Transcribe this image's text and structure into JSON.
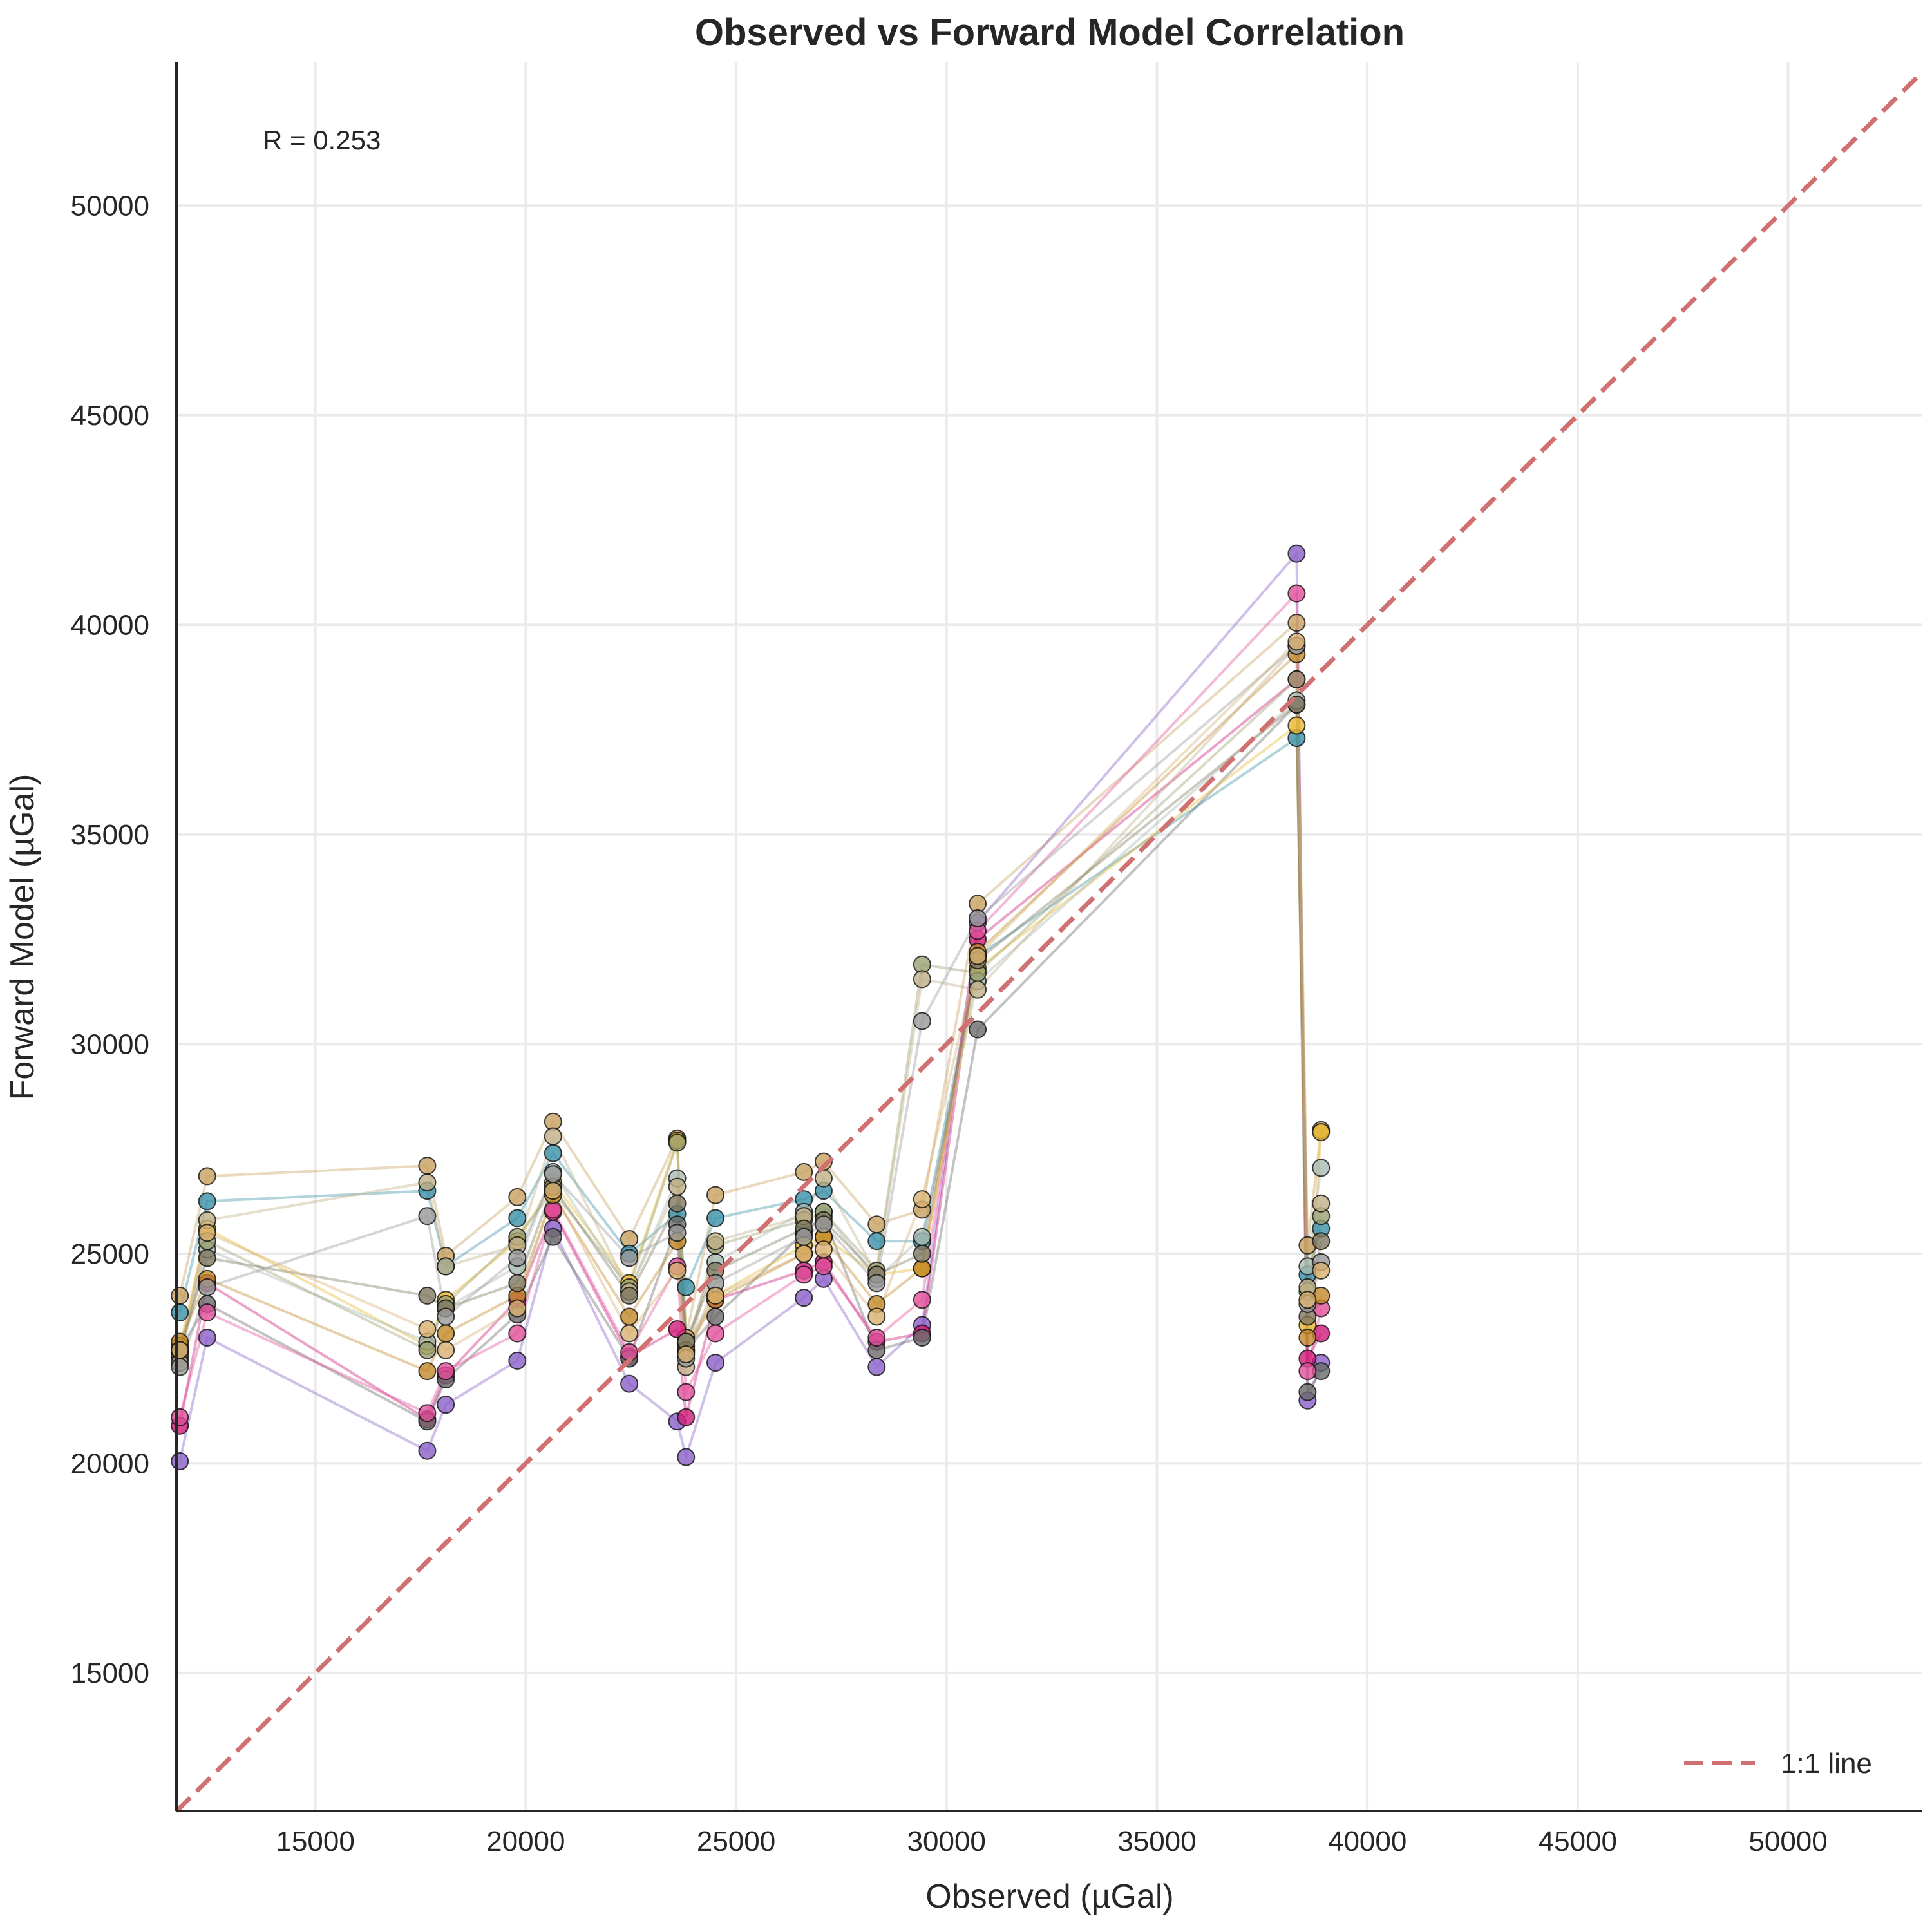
{
  "chart_data": {
    "type": "scatter",
    "title": "Observed vs Forward Model Correlation",
    "xlabel": "Observed (µGal)",
    "ylabel": "Forward Model (µGal)",
    "xlim": [
      11700,
      53190
    ],
    "ylim": [
      11710,
      53430
    ],
    "xticks": [
      15000,
      20000,
      25000,
      30000,
      35000,
      40000,
      45000,
      50000
    ],
    "yticks": [
      15000,
      20000,
      25000,
      30000,
      35000,
      40000,
      45000,
      50000
    ],
    "grid": true,
    "annotation": "R = 0.253",
    "reference_line": {
      "label": "1:1 line",
      "color": "#d07070",
      "style": "dashed"
    },
    "legend_position": "bottom-right",
    "x": [
      11780,
      12430,
      17660,
      18100,
      19800,
      20650,
      22460,
      23600,
      23810,
      24510,
      26610,
      27080,
      28340,
      29420,
      30740,
      38320,
      38580,
      38900
    ],
    "series": [
      {
        "color": "#c8a060",
        "values": [
          24000,
          26850,
          27100,
          24950,
          26350,
          28150,
          25350,
          27750,
          23000,
          26400,
          26950,
          27200,
          25700,
          26050,
          33350,
          40050,
          25200,
          27950
        ]
      },
      {
        "color": "#3a90a8",
        "values": [
          23600,
          26250,
          26500,
          24700,
          25850,
          27400,
          25000,
          25950,
          24200,
          25850,
          26300,
          26500,
          25300,
          25300,
          32100,
          37300,
          24500,
          25600
        ]
      },
      {
        "color": "#8a60c8",
        "values": [
          20050,
          23000,
          20300,
          21400,
          22450,
          25600,
          21900,
          21000,
          20150,
          22400,
          23950,
          24400,
          22300,
          23300,
          32900,
          41700,
          21500,
          22400
        ]
      },
      {
        "color": "#d01a78",
        "values": [
          20900,
          24300,
          21050,
          22100,
          23900,
          26000,
          22550,
          23200,
          21100,
          23900,
          24600,
          24800,
          22900,
          23100,
          32500,
          38700,
          22500,
          23100
        ]
      },
      {
        "color": "#6a6a6a",
        "values": [
          22700,
          23800,
          21000,
          22000,
          23550,
          25400,
          22500,
          25700,
          22700,
          23500,
          25500,
          25900,
          22700,
          23000,
          30350,
          38100,
          21700,
          22200
        ]
      },
      {
        "color": "#e0509a",
        "values": [
          21100,
          23600,
          21200,
          22200,
          23100,
          26050,
          22650,
          24700,
          21700,
          23100,
          24500,
          24700,
          23000,
          23900,
          32700,
          40750,
          22200,
          23700
        ]
      },
      {
        "color": "#e8b830",
        "values": [
          22800,
          25600,
          22800,
          23900,
          25300,
          26700,
          24300,
          27700,
          22800,
          24000,
          25200,
          25400,
          24500,
          24650,
          31800,
          37600,
          23300,
          27900
        ]
      },
      {
        "color": "#a8bab0",
        "values": [
          22500,
          25100,
          22900,
          23700,
          24700,
          26950,
          24100,
          26800,
          22900,
          24800,
          26000,
          26000,
          24400,
          25400,
          31500,
          38200,
          24700,
          27050
        ]
      },
      {
        "color": "#9aa070",
        "values": [
          22600,
          25300,
          22700,
          23800,
          25400,
          26500,
          24200,
          27650,
          22650,
          25200,
          25800,
          26000,
          24600,
          31900,
          31700,
          38700,
          24100,
          25900
        ]
      },
      {
        "color": "#c08828",
        "values": [
          22900,
          24400,
          22200,
          23100,
          24000,
          26400,
          23500,
          25300,
          22700,
          23900,
          25000,
          25400,
          23800,
          24650,
          32200,
          39300,
          23000,
          24000
        ]
      },
      {
        "color": "#c0b088",
        "values": [
          22400,
          25800,
          26700,
          24700,
          25200,
          27800,
          24100,
          26600,
          22300,
          25300,
          25900,
          26800,
          24500,
          31550,
          31300,
          39500,
          24200,
          26200
        ]
      },
      {
        "color": "#807860",
        "values": [
          22700,
          24900,
          24000,
          23700,
          24300,
          26600,
          24000,
          26200,
          22900,
          24600,
          25600,
          25800,
          24500,
          25000,
          32000,
          38100,
          23500,
          25300
        ]
      },
      {
        "color": "#999999",
        "values": [
          22300,
          24200,
          25900,
          23500,
          24900,
          26900,
          24900,
          25500,
          22500,
          24300,
          25400,
          25700,
          24300,
          30550,
          33000,
          39500,
          23800,
          24800
        ]
      },
      {
        "color": "#d8b070",
        "values": [
          22700,
          25500,
          23200,
          22700,
          23700,
          26500,
          23100,
          24600,
          22600,
          24000,
          25000,
          25100,
          23500,
          26300,
          32100,
          39600,
          23900,
          24600
        ]
      }
    ]
  }
}
